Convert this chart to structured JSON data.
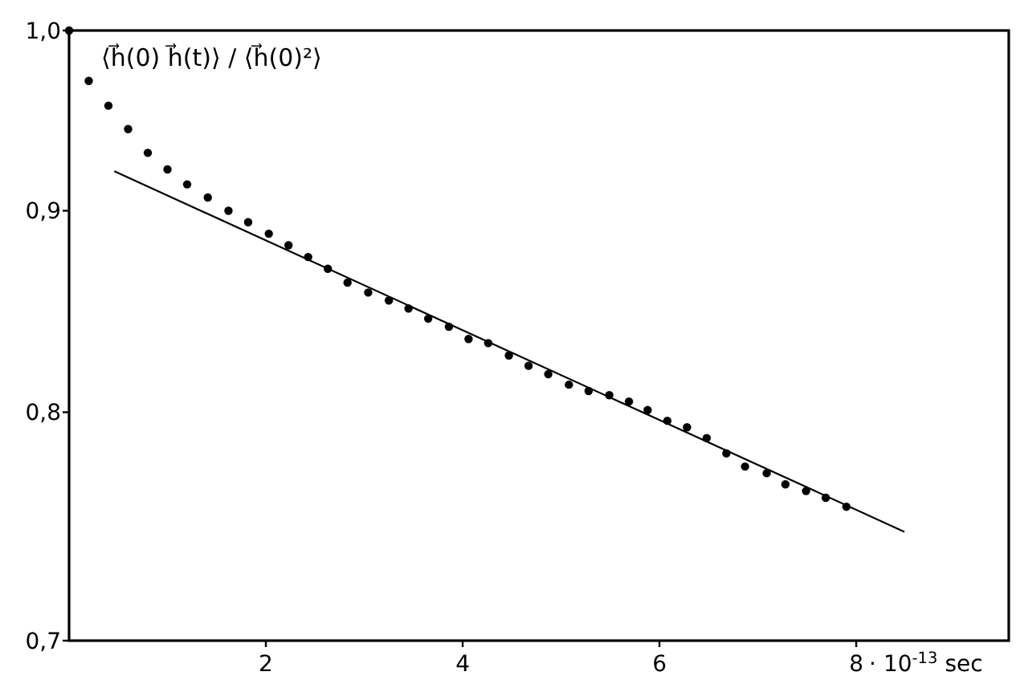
{
  "chart_data": {
    "type": "scatter",
    "ylabel": "⟨h⃗(0) h⃗(t)⟩ / ⟨h⃗(0)²⟩",
    "log": "y",
    "grid": false,
    "marker": "circle",
    "xlabel": "· 10$^{-13}$ sec",
    "xlim": [
      0,
      9.55
    ],
    "xticks": [
      2,
      4,
      6,
      8
    ],
    "ylim": [
      0.7,
      1.0
    ],
    "yticks": [
      {
        "value": 0.7,
        "label": "0,7"
      },
      {
        "value": 0.8,
        "label": "0,8"
      },
      {
        "value": 0.9,
        "label": "0,9"
      },
      {
        "value": 1.0,
        "label": "1,0"
      }
    ],
    "series": [
      {
        "color": "#000000",
        "x": [
          0,
          0.2,
          0.4,
          0.6,
          0.8,
          1.0,
          1.2,
          1.41,
          1.62,
          1.82,
          2.03,
          2.23,
          2.43,
          2.63,
          2.83,
          3.04,
          3.25,
          3.45,
          3.65,
          3.86,
          4.06,
          4.26,
          4.47,
          4.67,
          4.87,
          5.08,
          5.28,
          5.49,
          5.69,
          5.88,
          6.08,
          6.28,
          6.48,
          6.68,
          6.87,
          7.09,
          7.28,
          7.49,
          7.69,
          7.9
        ],
        "values": [
          1.0,
          0.971,
          0.957,
          0.944,
          0.931,
          0.922,
          0.914,
          0.907,
          0.9,
          0.894,
          0.888,
          0.882,
          0.876,
          0.87,
          0.863,
          0.858,
          0.854,
          0.85,
          0.845,
          0.841,
          0.835,
          0.833,
          0.827,
          0.822,
          0.818,
          0.813,
          0.81,
          0.808,
          0.805,
          0.801,
          0.796,
          0.793,
          0.788,
          0.781,
          0.775,
          0.772,
          0.767,
          0.764,
          0.761,
          0.757
        ]
      },
      {
        "type": "line",
        "color": "#000000",
        "line_style": "solid",
        "marker": "none",
        "x": [
          0.46,
          8.49
        ],
        "values": [
          0.921,
          0.746
        ]
      }
    ]
  }
}
